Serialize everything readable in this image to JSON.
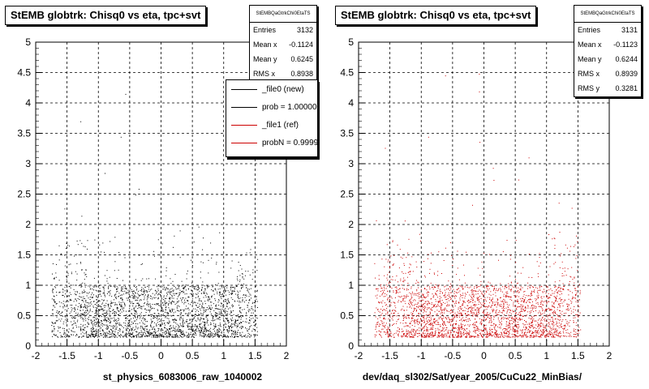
{
  "chart_data": [
    {
      "type": "scatter",
      "title": "StEMB globtrk: Chisq0 vs eta, tpc+svt",
      "xlabel": "st_physics_6083006_raw_1040002",
      "xlim": [
        -2,
        2
      ],
      "ylim": [
        0,
        5
      ],
      "xticks": [
        "-2",
        "-1.5",
        "-1",
        "-0.5",
        "0",
        "0.5",
        "1",
        "1.5",
        "2"
      ],
      "yticks": [
        "0",
        "0.5",
        "1",
        "1.5",
        "2",
        "2.5",
        "3",
        "3.5",
        "4",
        "4.5",
        "5"
      ],
      "grid": true,
      "color": "#000000",
      "stats": {
        "name": "StEMBQaGtrkChi0EtaTS",
        "rows": [
          {
            "label": "Entries",
            "value": "3132"
          },
          {
            "label": "Mean x",
            "value": "-0.1124"
          },
          {
            "label": "Mean y",
            "value": "0.6245"
          },
          {
            "label": "RMS x",
            "value": "0.8938"
          }
        ]
      },
      "legend": [
        {
          "label": "_file0 (new)",
          "color": "#000000"
        },
        {
          "label": "prob = 1.000000",
          "color": "#000000"
        },
        {
          "label": "_file1 (ref)",
          "color": "#cc0000"
        },
        {
          "label": "probN = 0.999947",
          "color": "#cc0000"
        }
      ],
      "points": {
        "entries": 3132,
        "mean_x": -0.1124,
        "mean_y": 0.6245,
        "rms_x": 0.8938
      }
    },
    {
      "type": "scatter",
      "title": "StEMB globtrk: Chisq0 vs eta, tpc+svt",
      "xlabel": "dev/daq_sl302/Sat/year_2005/CuCu22_MinBias/",
      "xlim": [
        -2,
        2
      ],
      "ylim": [
        0,
        5
      ],
      "xticks": [
        "-2",
        "-1.5",
        "-1",
        "-0.5",
        "0",
        "0.5",
        "1",
        "1.5",
        "2"
      ],
      "yticks": [
        "0",
        "0.5",
        "1",
        "1.5",
        "2",
        "2.5",
        "3",
        "3.5",
        "4",
        "4.5",
        "5"
      ],
      "grid": true,
      "color": "#cc0000",
      "stats": {
        "name": "StEMBQaGtrkChi0EtaTS",
        "rows": [
          {
            "label": "Entries",
            "value": "3131"
          },
          {
            "label": "Mean x",
            "value": "-0.1123"
          },
          {
            "label": "Mean y",
            "value": "0.6244"
          },
          {
            "label": "RMS x",
            "value": "0.8939"
          },
          {
            "label": "RMS y",
            "value": "0.3281"
          }
        ]
      },
      "points": {
        "entries": 3131,
        "mean_x": -0.1123,
        "mean_y": 0.6244,
        "rms_x": 0.8939
      }
    }
  ]
}
